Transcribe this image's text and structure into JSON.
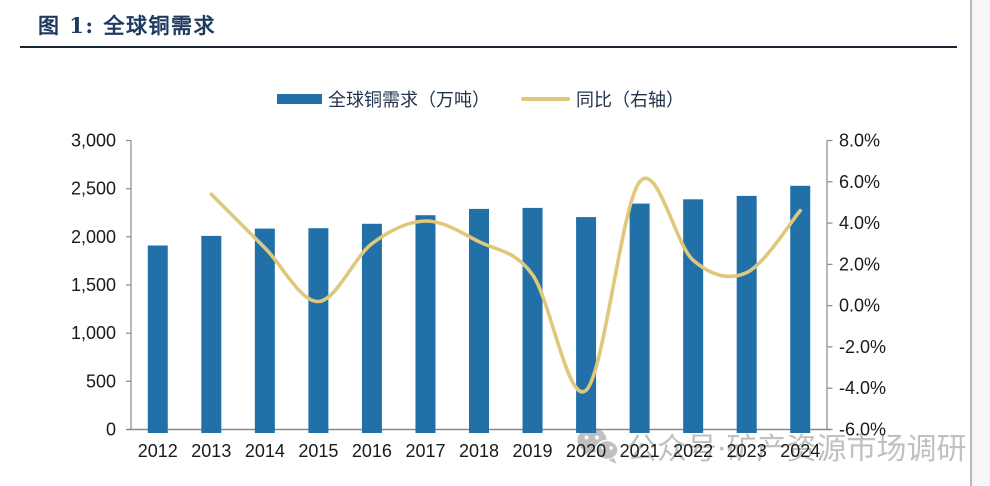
{
  "figure": {
    "title": "图 1: 全球铜需求",
    "watermark_text": "公众号·矿产资源市场调研"
  },
  "legend": [
    {
      "label": "全球铜需求（万吨）",
      "color": "#2171A8",
      "type": "bar"
    },
    {
      "label": "同比（右轴）",
      "color": "#DFC87A",
      "type": "line"
    }
  ],
  "chart_data": {
    "type": "bar+line",
    "title": "全球铜需求",
    "categories": [
      "2012",
      "2013",
      "2014",
      "2015",
      "2016",
      "2017",
      "2018",
      "2019",
      "2020",
      "2021",
      "2022",
      "2023",
      "2024"
    ],
    "series": [
      {
        "name": "全球铜需求（万吨）",
        "type": "bar",
        "axis": "left",
        "color": "#2171A8",
        "values": [
          1910,
          2010,
          2085,
          2090,
          2135,
          2225,
          2290,
          2300,
          2205,
          2345,
          2390,
          2425,
          2530
        ]
      },
      {
        "name": "同比（右轴）",
        "type": "line",
        "axis": "right",
        "color": "#DFC87A",
        "values": [
          null,
          5.4,
          2.8,
          0.2,
          3.0,
          4.1,
          3.1,
          1.5,
          -4.1,
          6.0,
          2.2,
          1.6,
          4.6
        ]
      }
    ],
    "left_axis": {
      "min": 0,
      "max": 3000,
      "step": 500,
      "tick_labels": [
        "0",
        "500",
        "1,000",
        "1,500",
        "2,000",
        "2,500",
        "3,000"
      ]
    },
    "right_axis": {
      "min": -6,
      "max": 8,
      "step": 2,
      "tick_labels": [
        "-6.0%",
        "-4.0%",
        "-2.0%",
        "0.0%",
        "2.0%",
        "4.0%",
        "6.0%",
        "8.0%"
      ]
    },
    "grid": false,
    "legend_position": "top",
    "plot_background": "white"
  }
}
